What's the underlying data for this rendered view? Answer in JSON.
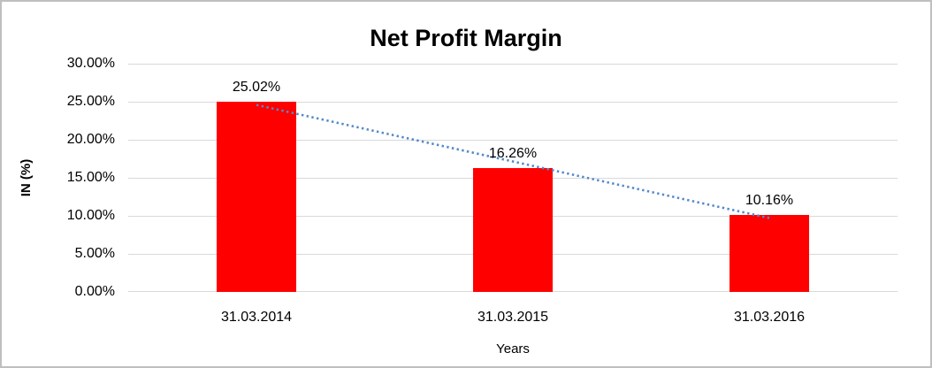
{
  "chart_data": {
    "type": "bar",
    "title": "Net Profit Margin",
    "categories": [
      "31.03.2014",
      "31.03.2015",
      "31.03.2016"
    ],
    "values": [
      25.02,
      16.26,
      10.16
    ],
    "data_labels": [
      "25.02%",
      "16.26%",
      "10.16%"
    ],
    "xlabel": "Years",
    "ylabel": "IN (%)",
    "ylim": [
      0,
      30
    ],
    "y_tick_step": 5,
    "y_tick_labels": [
      "0.00%",
      "5.00%",
      "10.00%",
      "15.00%",
      "20.00%",
      "25.00%",
      "30.00%"
    ],
    "grid": true,
    "legend": "none",
    "bar_color": "#ff0000",
    "gridline_color": "#d9d9d9",
    "frame_border_color": "#bfbfbf",
    "text_color": "#000000",
    "background_color": "#ffffff",
    "trendline": {
      "type": "linear",
      "style": "dotted",
      "color": "#5489cb"
    }
  }
}
